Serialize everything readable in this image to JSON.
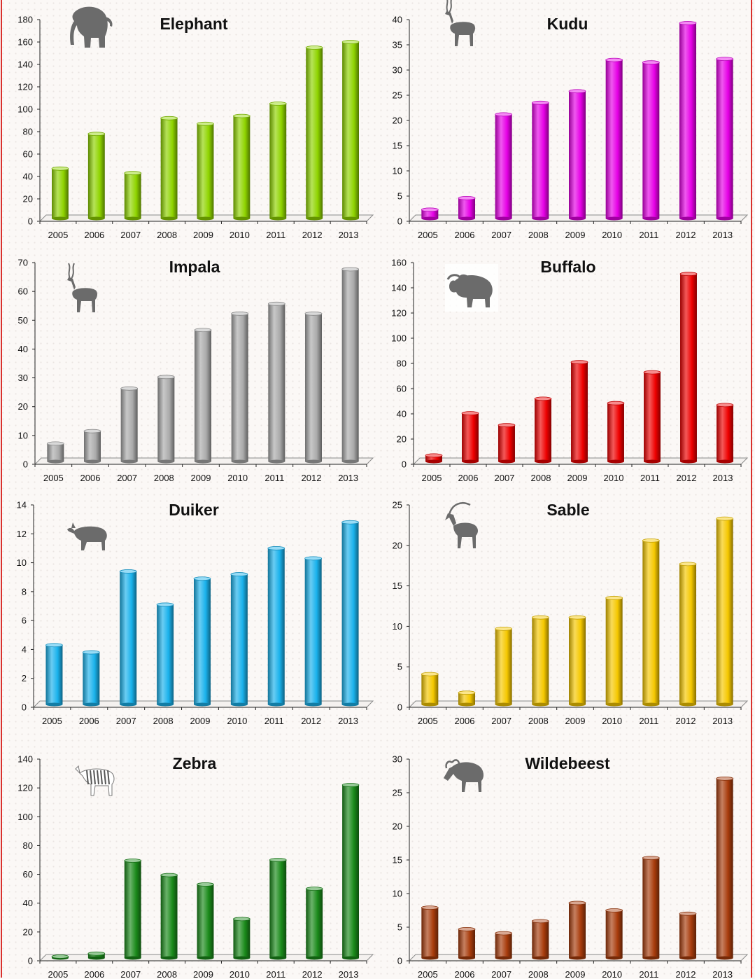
{
  "chart_data": [
    {
      "type": "bar",
      "title": "Elephant",
      "icon": "elephant-icon",
      "color": "#8fd400",
      "categories": [
        "2005",
        "2006",
        "2007",
        "2008",
        "2009",
        "2010",
        "2011",
        "2012",
        "2013"
      ],
      "values": [
        47,
        78,
        43,
        92,
        87,
        94,
        105,
        155,
        160
      ],
      "ylim": [
        0,
        180
      ],
      "yticks": [
        "0",
        "20",
        "40",
        "60",
        "80",
        "100",
        "120",
        "140",
        "160",
        "180"
      ],
      "grid": false
    },
    {
      "type": "bar",
      "title": "Kudu",
      "icon": "kudu-icon",
      "color": "#e600e6",
      "categories": [
        "2005",
        "2006",
        "2007",
        "2008",
        "2009",
        "2010",
        "2011",
        "2012",
        "2013"
      ],
      "values": [
        2.3,
        4.6,
        21.2,
        23.5,
        25.8,
        32,
        31.5,
        39.3,
        32.2
      ],
      "ylim": [
        0,
        40
      ],
      "yticks": [
        "0",
        "5",
        "10",
        "15",
        "20",
        "25",
        "30",
        "35",
        "40"
      ],
      "grid": false
    },
    {
      "type": "bar",
      "title": "Impala",
      "icon": "impala-icon",
      "color": "#aaaaaa",
      "categories": [
        "2005",
        "2006",
        "2007",
        "2008",
        "2009",
        "2010",
        "2011",
        "2012",
        "2013"
      ],
      "values": [
        7.2,
        11.5,
        26.3,
        30.3,
        46.6,
        52.3,
        55.7,
        52.3,
        67.7
      ],
      "ylim": [
        0,
        70
      ],
      "yticks": [
        "0",
        "10",
        "20",
        "30",
        "40",
        "50",
        "60",
        "70"
      ],
      "grid": false
    },
    {
      "type": "bar",
      "title": "Buffalo",
      "icon": "buffalo-icon",
      "color": "#ee0000",
      "categories": [
        "2005",
        "2006",
        "2007",
        "2008",
        "2009",
        "2010",
        "2011",
        "2012",
        "2013"
      ],
      "values": [
        7,
        40.5,
        31,
        52,
        81,
        48.5,
        73,
        151,
        47
      ],
      "ylim": [
        0,
        160
      ],
      "yticks": [
        "0",
        "20",
        "40",
        "60",
        "80",
        "100",
        "120",
        "140",
        "160"
      ],
      "grid": false
    },
    {
      "type": "bar",
      "title": "Duiker",
      "icon": "duiker-icon",
      "color": "#1ab2ec",
      "categories": [
        "2005",
        "2006",
        "2007",
        "2008",
        "2009",
        "2010",
        "2011",
        "2012",
        "2013"
      ],
      "values": [
        4.3,
        3.8,
        9.4,
        7.1,
        8.9,
        9.2,
        11,
        10.3,
        12.8
      ],
      "ylim": [
        0,
        14
      ],
      "yticks": [
        "0",
        "2",
        "4",
        "6",
        "8",
        "10",
        "12",
        "14"
      ],
      "grid": false
    },
    {
      "type": "bar",
      "title": "Sable",
      "icon": "sable-icon",
      "color": "#f5c800",
      "categories": [
        "2005",
        "2006",
        "2007",
        "2008",
        "2009",
        "2010",
        "2011",
        "2012",
        "2013"
      ],
      "values": [
        4.1,
        1.8,
        9.7,
        11.1,
        11.1,
        13.5,
        20.6,
        17.7,
        23.3
      ],
      "ylim": [
        0,
        25
      ],
      "yticks": [
        "0",
        "5",
        "10",
        "15",
        "20",
        "25"
      ],
      "grid": false
    },
    {
      "type": "bar",
      "title": "Zebra",
      "icon": "zebra-icon",
      "color": "#1a8a1a",
      "categories": [
        "2005",
        "2006",
        "2007",
        "2008",
        "2009",
        "2010",
        "2011",
        "2012",
        "2013"
      ],
      "values": [
        1.2,
        5,
        69.5,
        59.5,
        53,
        29,
        70,
        50,
        122
      ],
      "ylim": [
        0,
        140
      ],
      "yticks": [
        "0",
        "20",
        "40",
        "60",
        "80",
        "100",
        "120",
        "140"
      ],
      "grid": false
    },
    {
      "type": "bar",
      "title": "Wildebeest",
      "icon": "wildebeest-icon",
      "color": "#a83c0c",
      "categories": [
        "2005",
        "2006",
        "2007",
        "2008",
        "2009",
        "2010",
        "2011",
        "2012",
        "2013"
      ],
      "values": [
        7.9,
        4.7,
        4.1,
        5.9,
        8.6,
        7.5,
        15.3,
        7,
        27.1
      ],
      "ylim": [
        0,
        30
      ],
      "yticks": [
        "0",
        "5",
        "10",
        "15",
        "20",
        "25",
        "30"
      ],
      "grid": false
    }
  ]
}
